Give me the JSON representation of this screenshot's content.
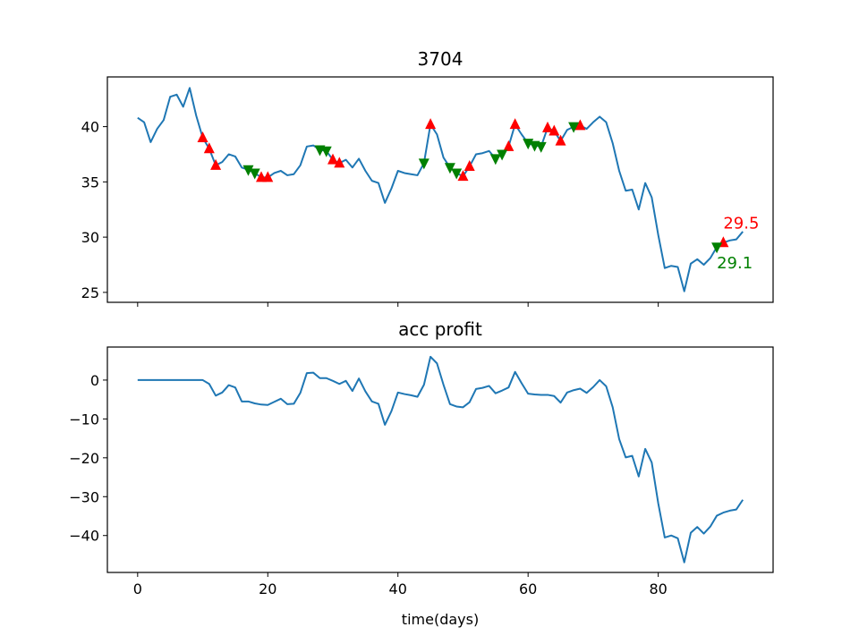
{
  "chart_data": [
    {
      "type": "line",
      "title": "3704",
      "xlabel": "",
      "ylabel": "",
      "xlim": [
        -4.65,
        97.65
      ],
      "ylim": [
        24.1,
        44.5
      ],
      "x_ticks": [
        0,
        20,
        40,
        60,
        80
      ],
      "x_tick_labels_visible": false,
      "y_ticks": [
        25,
        30,
        35,
        40
      ],
      "y_tick_labels": [
        "25",
        "30",
        "35",
        "40"
      ],
      "grid": false,
      "line_color": "#1f77b4",
      "series": [
        {
          "values": [
            40.8,
            40.4,
            38.6,
            39.8,
            40.6,
            42.7,
            42.9,
            41.8,
            43.5,
            41.0,
            39.0,
            38.0,
            36.5,
            36.8,
            37.5,
            37.3,
            36.3,
            36.1,
            35.8,
            35.4,
            35.4,
            35.8,
            36.0,
            35.6,
            35.7,
            36.5,
            38.2,
            38.3,
            37.9,
            37.8,
            37.0,
            36.7,
            37.0,
            36.3,
            37.1,
            36.0,
            35.1,
            34.9,
            33.1,
            34.4,
            36.0,
            35.8,
            35.7,
            35.6,
            36.7,
            40.2,
            39.3,
            37.2,
            36.3,
            35.8,
            35.5,
            36.4,
            37.5,
            37.6,
            37.8,
            37.1,
            37.5,
            38.2,
            40.2,
            39.3,
            38.5,
            38.3,
            38.2,
            39.9,
            39.6,
            38.7,
            39.7,
            40.0,
            40.1,
            39.8,
            40.4,
            40.9,
            40.4,
            38.5,
            36.0,
            34.2,
            34.3,
            32.5,
            34.9,
            33.6,
            30.2,
            27.2,
            27.4,
            27.3,
            25.1,
            27.6,
            28.0,
            27.5,
            28.1,
            29.1,
            29.5,
            29.7,
            29.8,
            30.5
          ]
        }
      ],
      "buy_markers": {
        "color": "#ff0000",
        "shape": "triangle-up",
        "x": [
          10,
          11,
          12,
          19,
          20,
          30,
          31,
          45,
          50,
          51,
          57,
          58,
          63,
          64,
          65,
          68,
          90
        ],
        "y": [
          39.0,
          38.0,
          36.5,
          35.4,
          35.4,
          37.0,
          36.7,
          40.2,
          35.5,
          36.4,
          38.2,
          40.2,
          39.9,
          39.6,
          38.7,
          40.1,
          29.5
        ]
      },
      "sell_markers": {
        "color": "#008000",
        "shape": "triangle-down",
        "x": [
          17,
          18,
          28,
          29,
          44,
          48,
          49,
          55,
          56,
          60,
          61,
          62,
          67,
          89
        ],
        "y": [
          36.1,
          35.8,
          37.9,
          37.8,
          36.7,
          36.3,
          35.8,
          37.1,
          37.5,
          38.5,
          38.3,
          38.2,
          40.0,
          29.1
        ]
      },
      "annotations": [
        {
          "text": "29.5",
          "x": 90,
          "y": 29.5,
          "color": "#ff0000"
        },
        {
          "text": "29.1",
          "x": 89,
          "y": 29.1,
          "color": "#008000"
        }
      ]
    },
    {
      "type": "line",
      "title": "acc profit",
      "xlabel": "time(days)",
      "ylabel": "",
      "xlim": [
        -4.65,
        97.65
      ],
      "ylim": [
        -49.5,
        8.5
      ],
      "x_ticks": [
        0,
        20,
        40,
        60,
        80
      ],
      "x_tick_labels": [
        "0",
        "20",
        "40",
        "60",
        "80"
      ],
      "y_ticks": [
        -40,
        -30,
        -20,
        -10,
        0
      ],
      "y_tick_labels": [
        "−40",
        "−30",
        "−20",
        "−10",
        "0"
      ],
      "grid": false,
      "line_color": "#1f77b4",
      "series": [
        {
          "values": [
            0,
            0,
            0,
            0,
            0,
            0,
            0,
            0,
            0,
            0,
            0,
            -1,
            -4,
            -3.2,
            -1.3,
            -1.9,
            -5.5,
            -5.5,
            -6.0,
            -6.3,
            -6.4,
            -5.6,
            -4.8,
            -6.2,
            -6.1,
            -3.3,
            1.8,
            1.9,
            0.5,
            0.5,
            -0.2,
            -1.0,
            -0.2,
            -2.8,
            0.4,
            -2.9,
            -5.5,
            -6.1,
            -11.5,
            -8.0,
            -3.2,
            -3.6,
            -3.9,
            -4.3,
            -1.2,
            6.0,
            4.3,
            -1.2,
            -6.2,
            -6.8,
            -7.0,
            -5.7,
            -2.3,
            -2.0,
            -1.5,
            -3.4,
            -2.7,
            -1.9,
            2.1,
            -0.8,
            -3.5,
            -3.7,
            -3.8,
            -3.8,
            -4.1,
            -5.8,
            -3.2,
            -2.6,
            -2.2,
            -3.3,
            -1.8,
            0,
            -1.6,
            -7.0,
            -15.2,
            -19.9,
            -19.5,
            -24.8,
            -17.7,
            -21.2,
            -31.7,
            -40.5,
            -40.0,
            -40.7,
            -46.9,
            -39.3,
            -37.8,
            -39.5,
            -37.7,
            -34.9,
            -34.1,
            -33.6,
            -33.3,
            -30.8
          ]
        }
      ]
    }
  ]
}
